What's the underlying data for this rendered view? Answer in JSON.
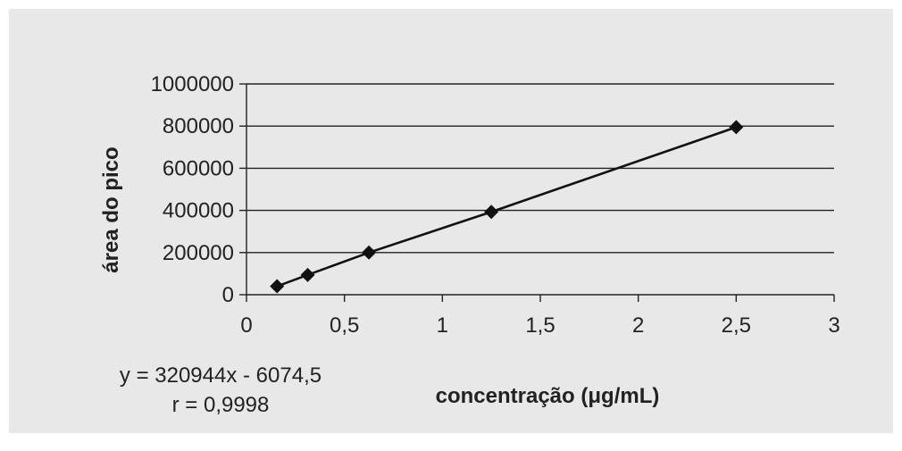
{
  "chart_data": {
    "type": "line",
    "xlabel": "concentração (μg/mL)",
    "ylabel": "área do pico",
    "xlim": [
      0,
      3
    ],
    "ylim": [
      0,
      1000000
    ],
    "x_ticks": [
      "0",
      "0,5",
      "1",
      "1,5",
      "2",
      "2,5",
      "3"
    ],
    "y_ticks": [
      "0",
      "200000",
      "400000",
      "600000",
      "800000",
      "1000000"
    ],
    "grid": true,
    "series": [
      {
        "x": [
          0.156,
          0.3125,
          0.625,
          1.25,
          2.5
        ],
        "y": [
          40000,
          94000,
          200000,
          393000,
          795000
        ],
        "marker": "diamond",
        "color": "#111111"
      }
    ],
    "trendline": {
      "slope": 320944,
      "intercept": -6074.5,
      "color": "#111111"
    },
    "annotations": {
      "equation": "y = 320944x - 6074,5",
      "r_value": "r = 0,9998"
    }
  },
  "colors": {
    "background": "#e8e8e8",
    "gridline": "#222222",
    "text": "#222222"
  }
}
